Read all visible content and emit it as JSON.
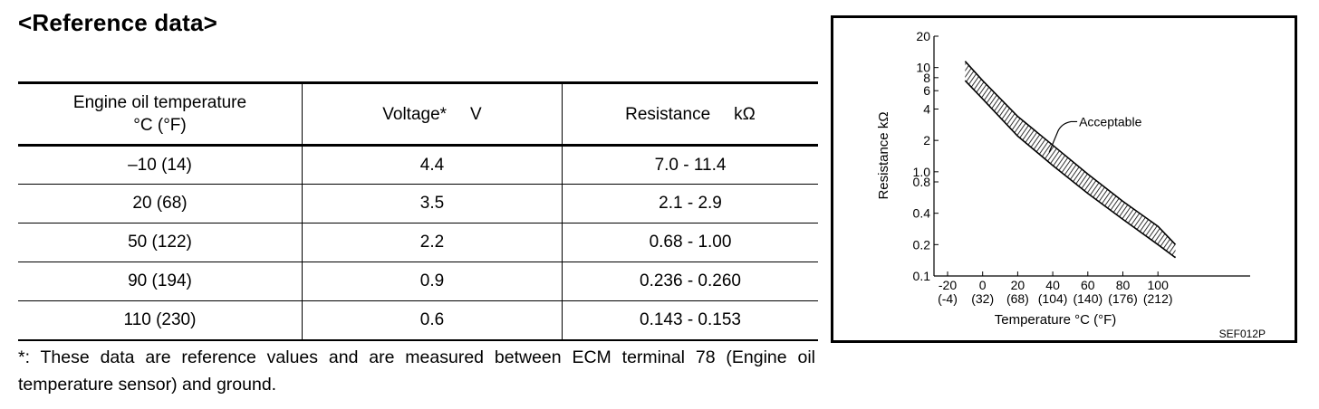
{
  "heading": "<Reference data>",
  "table": {
    "headers": {
      "temp_line1": "Engine oil temperature",
      "temp_line2": "°C (°F)",
      "voltage": "Voltage*",
      "voltage_unit": "V",
      "resistance": "Resistance",
      "resistance_unit": "kΩ"
    },
    "rows": [
      {
        "temp": "–10 (14)",
        "voltage": "4.4",
        "resistance": "7.0 - 11.4"
      },
      {
        "temp": "20 (68)",
        "voltage": "3.5",
        "resistance": "2.1 - 2.9"
      },
      {
        "temp": "50 (122)",
        "voltage": "2.2",
        "resistance": "0.68 - 1.00"
      },
      {
        "temp": "90 (194)",
        "voltage": "0.9",
        "resistance": "0.236 - 0.260"
      },
      {
        "temp": "110 (230)",
        "voltage": "0.6",
        "resistance": "0.143 - 0.153"
      }
    ]
  },
  "footnote": "*: These data are reference values and are measured between ECM terminal 78 (Engine oil temperature sensor) and ground.",
  "chart_data": {
    "type": "area",
    "scale": "log-y",
    "ylabel": "Resistance  kΩ",
    "xlabel": "Temperature °C (°F)",
    "annotation": "Acceptable",
    "figure_code": "SEF012P",
    "y_ticks": [
      "20",
      "10",
      "8",
      "6",
      "4",
      "2",
      "1.0",
      "0.8",
      "0.4",
      "0.2",
      "0.1"
    ],
    "y_tick_values": [
      20,
      10,
      8,
      6,
      4,
      2,
      1.0,
      0.8,
      0.4,
      0.2,
      0.1
    ],
    "x_ticks_c": [
      "-20",
      "0",
      "20",
      "40",
      "60",
      "80",
      "100"
    ],
    "x_ticks_f": [
      "(-4)",
      "(32)",
      "(68)",
      "(104)",
      "(140)",
      "(176)",
      "(212)"
    ],
    "x_tick_values": [
      -20,
      0,
      20,
      40,
      60,
      80,
      100
    ],
    "xlim": [
      -20,
      100
    ],
    "ylim": [
      0.1,
      20
    ],
    "series": [
      {
        "x": [
          -10,
          0,
          20,
          40,
          60,
          80,
          100,
          110
        ],
        "y_upper": [
          11.5,
          7.5,
          3.4,
          1.8,
          0.95,
          0.52,
          0.3,
          0.2
        ],
        "y_lower": [
          7.5,
          5.0,
          2.2,
          1.15,
          0.62,
          0.35,
          0.2,
          0.15
        ]
      }
    ]
  }
}
